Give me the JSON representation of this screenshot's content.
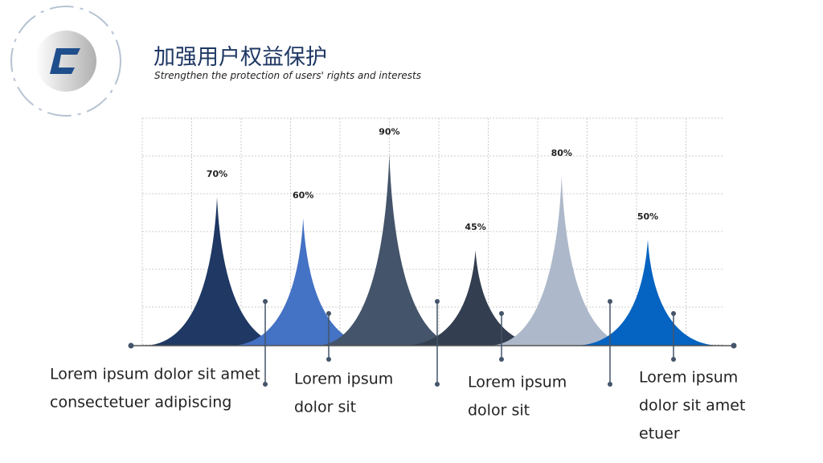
{
  "chart_data": {
    "type": "peak",
    "title": "加强用户权益保护",
    "subtitle": "Strengthen the protection of users' rights and interests",
    "values": [
      70,
      60,
      90,
      45,
      80,
      50
    ],
    "value_labels": [
      "70%",
      "60%",
      "90%",
      "45%",
      "80%",
      "50%"
    ],
    "colors": [
      "#1f3864",
      "#4472c4",
      "#44546a",
      "#333f50",
      "#adb9ca",
      "#0563c1"
    ],
    "ylim": [
      0,
      100
    ],
    "grid": true,
    "annotations": [
      [
        "Lorem ipsum dolor sit amet",
        "consectetuer adipiscing"
      ],
      [
        "Lorem ipsum",
        "dolor sit"
      ],
      [
        "Lorem ipsum",
        "dolor sit"
      ],
      [
        "Lorem ipsum",
        "dolor sit amet",
        "etuer"
      ]
    ]
  }
}
